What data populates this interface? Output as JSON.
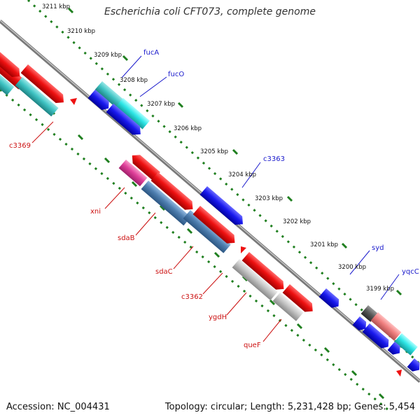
{
  "title": "Escherichia coli CFT073, complete genome",
  "footer": {
    "accession": "Accession: NC_004431",
    "summary": "Topology: circular; Length: 5,231,428 bp; Genes: 5,454"
  },
  "colors": {
    "background": "#ffffff",
    "backbone": "#8c8c8c",
    "tick_marks": "#1f7f1f",
    "forward_label": "#1a1acc",
    "reverse_label": "#cc1111",
    "gene_red": "#ee1111",
    "gene_blue": "#1a1aee",
    "gene_cyan": "#3fd6d6",
    "gene_teal": "#40c4c4",
    "gene_steel": "#4f7fb0",
    "gene_grey": "#bdbdbd",
    "gene_pink": "#e0409a"
  },
  "scale_labels": [
    "3211 kbp",
    "3210 kbp",
    "3209 kbp",
    "3208 kbp",
    "3207 kbp",
    "3206 kbp",
    "3205 kbp",
    "3204 kbp",
    "3203 kbp",
    "3202 kbp",
    "3201 kbp",
    "3200 kbp",
    "3199 kbp"
  ],
  "forward_gene_labels": [
    "fucA",
    "fucO",
    "c3363",
    "syd",
    "yqcC"
  ],
  "reverse_gene_labels": [
    "c3369",
    "xni",
    "sdaB",
    "sdaC",
    "c3362",
    "ygdH",
    "queF"
  ]
}
